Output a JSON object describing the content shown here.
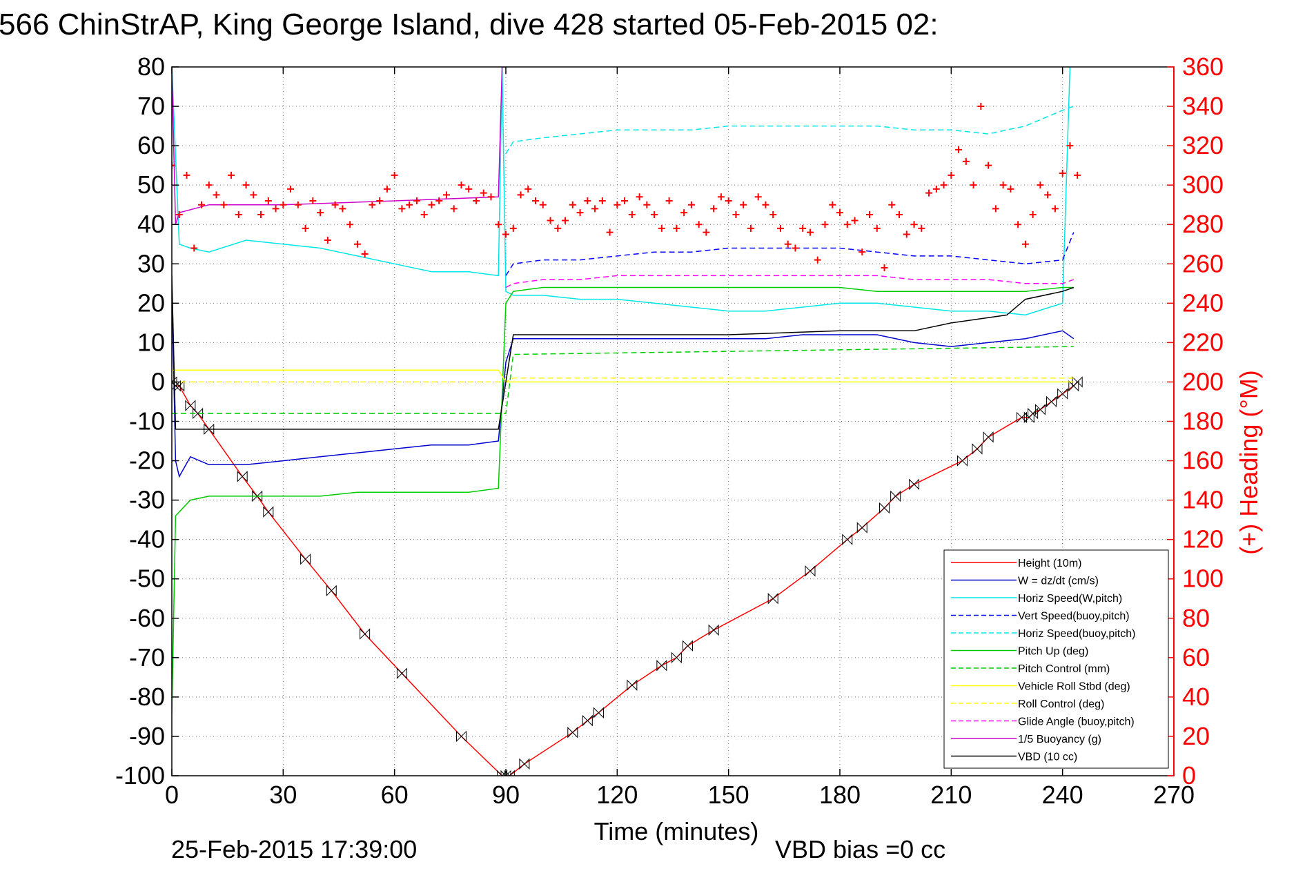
{
  "title": "566 ChinStrAP, King George Island, dive 428 started 05-Feb-2015 02:",
  "footer": {
    "date_stamp": "25-Feb-2015 17:39:00",
    "vbd_bias": "VBD bias =0 cc"
  },
  "chart_data": {
    "type": "line",
    "title": "566 ChinStrAP, King George Island, dive 428 started 05-Feb-2015 02:",
    "xlabel": "Time (minutes)",
    "ylabel_right": "(+) Heading (°M)",
    "xlim": [
      0,
      270
    ],
    "ylim_left": [
      -100,
      80
    ],
    "ylim_right": [
      0,
      360
    ],
    "grid": true,
    "legend_position": "lower-right",
    "x_ticks": [
      "0",
      "30",
      "60",
      "90",
      "120",
      "150",
      "180",
      "210",
      "240",
      "270"
    ],
    "y_ticks_left": [
      "80",
      "70",
      "60",
      "50",
      "40",
      "30",
      "20",
      "10",
      "0",
      "-10",
      "-20",
      "-30",
      "-40",
      "-50",
      "-60",
      "-70",
      "-80",
      "-90",
      "-100"
    ],
    "y_ticks_right": [
      "360",
      "340",
      "320",
      "300",
      "280",
      "260",
      "240",
      "220",
      "200",
      "180",
      "160",
      "140",
      "120",
      "100",
      "80",
      "60",
      "40",
      "20",
      "0"
    ],
    "series": [
      {
        "name": "Height (10m)",
        "color": "#ff0000",
        "style": "solid",
        "axis": "left",
        "x": [
          0,
          1,
          2,
          5,
          7,
          10,
          19,
          23,
          26,
          36,
          43,
          52,
          62,
          78,
          89,
          90,
          91,
          95,
          108,
          112,
          115,
          124,
          132,
          136,
          139,
          146,
          162,
          172,
          182,
          186,
          192,
          195,
          200,
          213,
          217,
          220,
          229,
          231,
          232,
          234,
          237,
          240,
          243,
          244
        ],
        "y": [
          0,
          -1,
          -1,
          -6,
          -8,
          -12,
          -24,
          -29,
          -33,
          -45,
          -53,
          -64,
          -74,
          -90,
          -100,
          -100,
          -100,
          -97,
          -89,
          -86,
          -84,
          -77,
          -72,
          -70,
          -67,
          -63,
          -55,
          -48,
          -40,
          -37,
          -32,
          -29,
          -26,
          -20,
          -17,
          -14,
          -9,
          -9,
          -8,
          -7,
          -5,
          -3,
          -1,
          0
        ]
      },
      {
        "name": "W = dz/dt (cm/s)",
        "color": "#0000cc",
        "style": "solid",
        "axis": "left",
        "x": [
          0,
          1,
          2,
          5,
          10,
          20,
          30,
          40,
          50,
          60,
          70,
          80,
          88,
          90,
          92,
          100,
          110,
          120,
          130,
          140,
          150,
          160,
          170,
          180,
          190,
          200,
          210,
          220,
          230,
          240,
          243
        ],
        "y": [
          25,
          -20,
          -24,
          -19,
          -21,
          -21,
          -20,
          -19,
          -18,
          -17,
          -16,
          -16,
          -15,
          5,
          11,
          11,
          11,
          11,
          11,
          11,
          11,
          11,
          12,
          12,
          12,
          10,
          9,
          10,
          11,
          13,
          11
        ]
      },
      {
        "name": "Horiz Speed(W,pitch)",
        "color": "#00e5e5",
        "style": "solid",
        "axis": "left",
        "x": [
          0,
          2,
          5,
          10,
          20,
          30,
          40,
          50,
          60,
          70,
          80,
          88,
          89,
          90,
          92,
          100,
          110,
          120,
          130,
          140,
          150,
          160,
          170,
          180,
          190,
          200,
          210,
          220,
          230,
          240,
          242
        ],
        "y": [
          80,
          35,
          34,
          33,
          36,
          35,
          34,
          32,
          30,
          28,
          28,
          27,
          80,
          23,
          22,
          22,
          21,
          21,
          20,
          19,
          18,
          18,
          19,
          20,
          20,
          19,
          18,
          18,
          17,
          20,
          80
        ]
      },
      {
        "name": "Vert Speed(buoy,pitch)",
        "color": "#0000ff",
        "style": "dashed",
        "axis": "left",
        "x": [
          90,
          92,
          100,
          110,
          120,
          130,
          140,
          150,
          160,
          170,
          180,
          190,
          200,
          210,
          220,
          230,
          240,
          243
        ],
        "y": [
          27,
          30,
          31,
          31,
          32,
          33,
          33,
          34,
          34,
          34,
          34,
          33,
          32,
          32,
          31,
          30,
          31,
          38
        ]
      },
      {
        "name": "Horiz Speed(buoy,pitch)",
        "color": "#00e5e5",
        "style": "dashed",
        "axis": "left",
        "x": [
          90,
          92,
          100,
          110,
          120,
          130,
          140,
          150,
          160,
          170,
          180,
          190,
          200,
          210,
          220,
          230,
          240,
          243
        ],
        "y": [
          58,
          61,
          62,
          63,
          64,
          64,
          64,
          65,
          65,
          65,
          65,
          65,
          64,
          64,
          63,
          65,
          69,
          70
        ]
      },
      {
        "name": "Pitch Up (deg)",
        "color": "#00cc00",
        "style": "solid",
        "axis": "left",
        "x": [
          0,
          1,
          2,
          5,
          10,
          20,
          30,
          40,
          50,
          60,
          70,
          80,
          88,
          90,
          92,
          100,
          110,
          120,
          130,
          140,
          150,
          160,
          170,
          180,
          190,
          200,
          210,
          220,
          230,
          240,
          243
        ],
        "y": [
          -84,
          -34,
          -33,
          -30,
          -29,
          -29,
          -29,
          -29,
          -28,
          -28,
          -28,
          -28,
          -27,
          20,
          23,
          24,
          24,
          24,
          24,
          24,
          24,
          24,
          24,
          24,
          23,
          23,
          23,
          23,
          23,
          24,
          24
        ]
      },
      {
        "name": "Pitch Control (mm)",
        "color": "#00cc00",
        "style": "dashed",
        "axis": "left",
        "x": [
          0,
          2,
          90,
          92,
          243
        ],
        "y": [
          -8,
          -8,
          -8,
          7,
          9
        ]
      },
      {
        "name": "Vehicle Roll Stbd (deg)",
        "color": "#ffff00",
        "style": "solid",
        "axis": "left",
        "x": [
          0,
          10,
          20,
          30,
          40,
          50,
          60,
          70,
          80,
          88,
          90,
          92,
          100,
          110,
          120,
          130,
          140,
          150,
          160,
          170,
          180,
          190,
          200,
          210,
          220,
          230,
          240,
          243
        ],
        "y": [
          3,
          3,
          3,
          3,
          3,
          3,
          3,
          3,
          3,
          3,
          0,
          0,
          0,
          0,
          0,
          0,
          0,
          0,
          0,
          0,
          0,
          0,
          0,
          0,
          0,
          0,
          0,
          0
        ]
      },
      {
        "name": "Roll Control (deg)",
        "color": "#ffff00",
        "style": "dashed",
        "axis": "left",
        "x": [
          0,
          90,
          92,
          243
        ],
        "y": [
          0,
          0,
          1,
          1
        ]
      },
      {
        "name": "Glide Angle (buoy,pitch)",
        "color": "#ff00ff",
        "style": "dashed",
        "axis": "left",
        "x": [
          90,
          92,
          100,
          110,
          120,
          130,
          140,
          150,
          160,
          170,
          180,
          190,
          200,
          210,
          220,
          230,
          240,
          243
        ],
        "y": [
          24,
          25,
          26,
          26,
          27,
          27,
          27,
          27,
          27,
          27,
          27,
          27,
          26,
          26,
          26,
          25,
          25,
          26
        ]
      },
      {
        "name": "1/5 Buoyancy (g)",
        "color": "#cc00cc",
        "style": "solid",
        "axis": "left",
        "x": [
          0,
          1,
          2,
          10,
          30,
          60,
          88,
          89,
          90
        ],
        "y": [
          80,
          40,
          43,
          45,
          45,
          46,
          47,
          80,
          80
        ]
      },
      {
        "name": "VBD (10 cc)",
        "color": "#000000",
        "style": "solid",
        "axis": "left",
        "x": [
          0,
          1,
          2,
          88,
          92,
          120,
          150,
          180,
          200,
          210,
          225,
          230,
          240,
          243
        ],
        "y": [
          27,
          -12,
          -12,
          -12,
          12,
          12,
          12,
          13,
          13,
          15,
          17,
          21,
          23,
          24
        ]
      },
      {
        "name": "Heading (deg M)",
        "color": "#ff0000",
        "style": "markers",
        "axis": "right",
        "x": [
          0,
          2,
          4,
          6,
          8,
          10,
          12,
          14,
          16,
          18,
          20,
          22,
          24,
          26,
          28,
          30,
          32,
          34,
          36,
          38,
          40,
          42,
          44,
          46,
          48,
          50,
          52,
          54,
          56,
          58,
          60,
          62,
          64,
          66,
          68,
          70,
          72,
          74,
          76,
          78,
          80,
          82,
          84,
          86,
          88,
          90,
          92,
          94,
          96,
          98,
          100,
          102,
          104,
          106,
          108,
          110,
          112,
          114,
          116,
          118,
          120,
          122,
          124,
          126,
          128,
          130,
          132,
          134,
          136,
          138,
          140,
          142,
          144,
          146,
          148,
          150,
          152,
          154,
          156,
          158,
          160,
          162,
          164,
          166,
          168,
          170,
          172,
          174,
          176,
          178,
          180,
          182,
          184,
          186,
          188,
          190,
          192,
          194,
          196,
          198,
          200,
          202,
          204,
          206,
          208,
          210,
          212,
          214,
          216,
          218,
          220,
          222,
          224,
          226,
          228,
          230,
          232,
          234,
          236,
          238,
          240,
          242,
          244
        ],
        "y": [
          310,
          285,
          305,
          268,
          290,
          300,
          295,
          290,
          305,
          285,
          300,
          295,
          285,
          292,
          288,
          290,
          298,
          290,
          278,
          292,
          286,
          272,
          290,
          288,
          280,
          270,
          265,
          290,
          292,
          298,
          305,
          288,
          290,
          292,
          285,
          290,
          292,
          295,
          288,
          300,
          298,
          292,
          296,
          294,
          280,
          275,
          278,
          295,
          298,
          292,
          290,
          282,
          278,
          282,
          290,
          286,
          292,
          288,
          292,
          276,
          290,
          292,
          285,
          294,
          290,
          285,
          278,
          292,
          278,
          286,
          290,
          280,
          276,
          288,
          294,
          292,
          285,
          290,
          278,
          294,
          290,
          285,
          278,
          270,
          268,
          278,
          276,
          262,
          280,
          290,
          286,
          280,
          282,
          266,
          285,
          278,
          258,
          290,
          285,
          275,
          280,
          278,
          296,
          298,
          300,
          305,
          318,
          312,
          300,
          340,
          310,
          288,
          300,
          298,
          280,
          270,
          285,
          300,
          295,
          288,
          306,
          320,
          305
        ]
      }
    ]
  }
}
